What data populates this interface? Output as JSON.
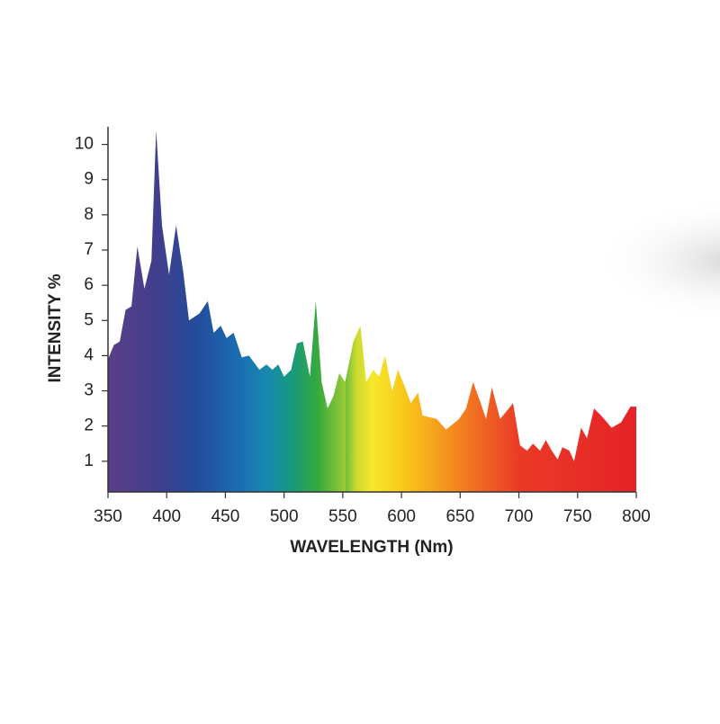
{
  "chart_data": {
    "type": "area",
    "xlabel": "WAVELENGTH (Nm)",
    "ylabel": "INTENSITY %",
    "xlim": [
      350,
      800
    ],
    "ylim": [
      0,
      10.5
    ],
    "xticks": [
      350,
      400,
      450,
      500,
      550,
      600,
      650,
      700,
      750,
      800
    ],
    "yticks": [
      1,
      2,
      3,
      4,
      5,
      6,
      7,
      8,
      9,
      10
    ],
    "x": [
      350,
      355,
      360,
      365,
      370,
      375,
      381,
      387,
      391,
      396,
      402,
      408,
      414,
      419,
      428,
      435,
      440,
      446,
      451,
      457,
      464,
      470,
      479,
      485,
      490,
      495,
      500,
      506,
      511,
      516,
      522,
      527,
      532,
      537,
      542,
      547,
      552,
      559,
      565,
      570,
      576,
      581,
      586,
      592,
      597,
      603,
      608,
      614,
      618,
      630,
      638,
      649,
      655,
      661,
      668,
      672,
      677,
      684,
      689,
      695,
      701,
      707,
      712,
      718,
      723,
      728,
      733,
      737,
      743,
      747,
      753,
      758,
      764,
      770,
      779,
      787,
      795,
      800
    ],
    "values": [
      3.9,
      4.3,
      4.4,
      5.3,
      5.4,
      7.1,
      5.9,
      6.7,
      10.4,
      7.7,
      6.3,
      7.7,
      6.4,
      5.0,
      5.2,
      5.55,
      4.65,
      4.85,
      4.5,
      4.65,
      3.95,
      4.0,
      3.6,
      3.75,
      3.6,
      3.75,
      3.4,
      3.6,
      4.35,
      4.4,
      3.4,
      5.55,
      3.25,
      2.5,
      2.85,
      3.5,
      3.25,
      4.4,
      4.85,
      3.25,
      3.6,
      3.4,
      4.0,
      3.0,
      3.6,
      3.1,
      2.65,
      2.95,
      2.3,
      2.2,
      1.9,
      2.2,
      2.5,
      3.25,
      2.6,
      2.2,
      3.1,
      2.2,
      2.4,
      2.65,
      1.45,
      1.3,
      1.5,
      1.3,
      1.6,
      1.3,
      1.05,
      1.4,
      1.3,
      1.0,
      1.95,
      1.65,
      2.5,
      2.3,
      1.95,
      2.1,
      2.55,
      2.55
    ]
  }
}
